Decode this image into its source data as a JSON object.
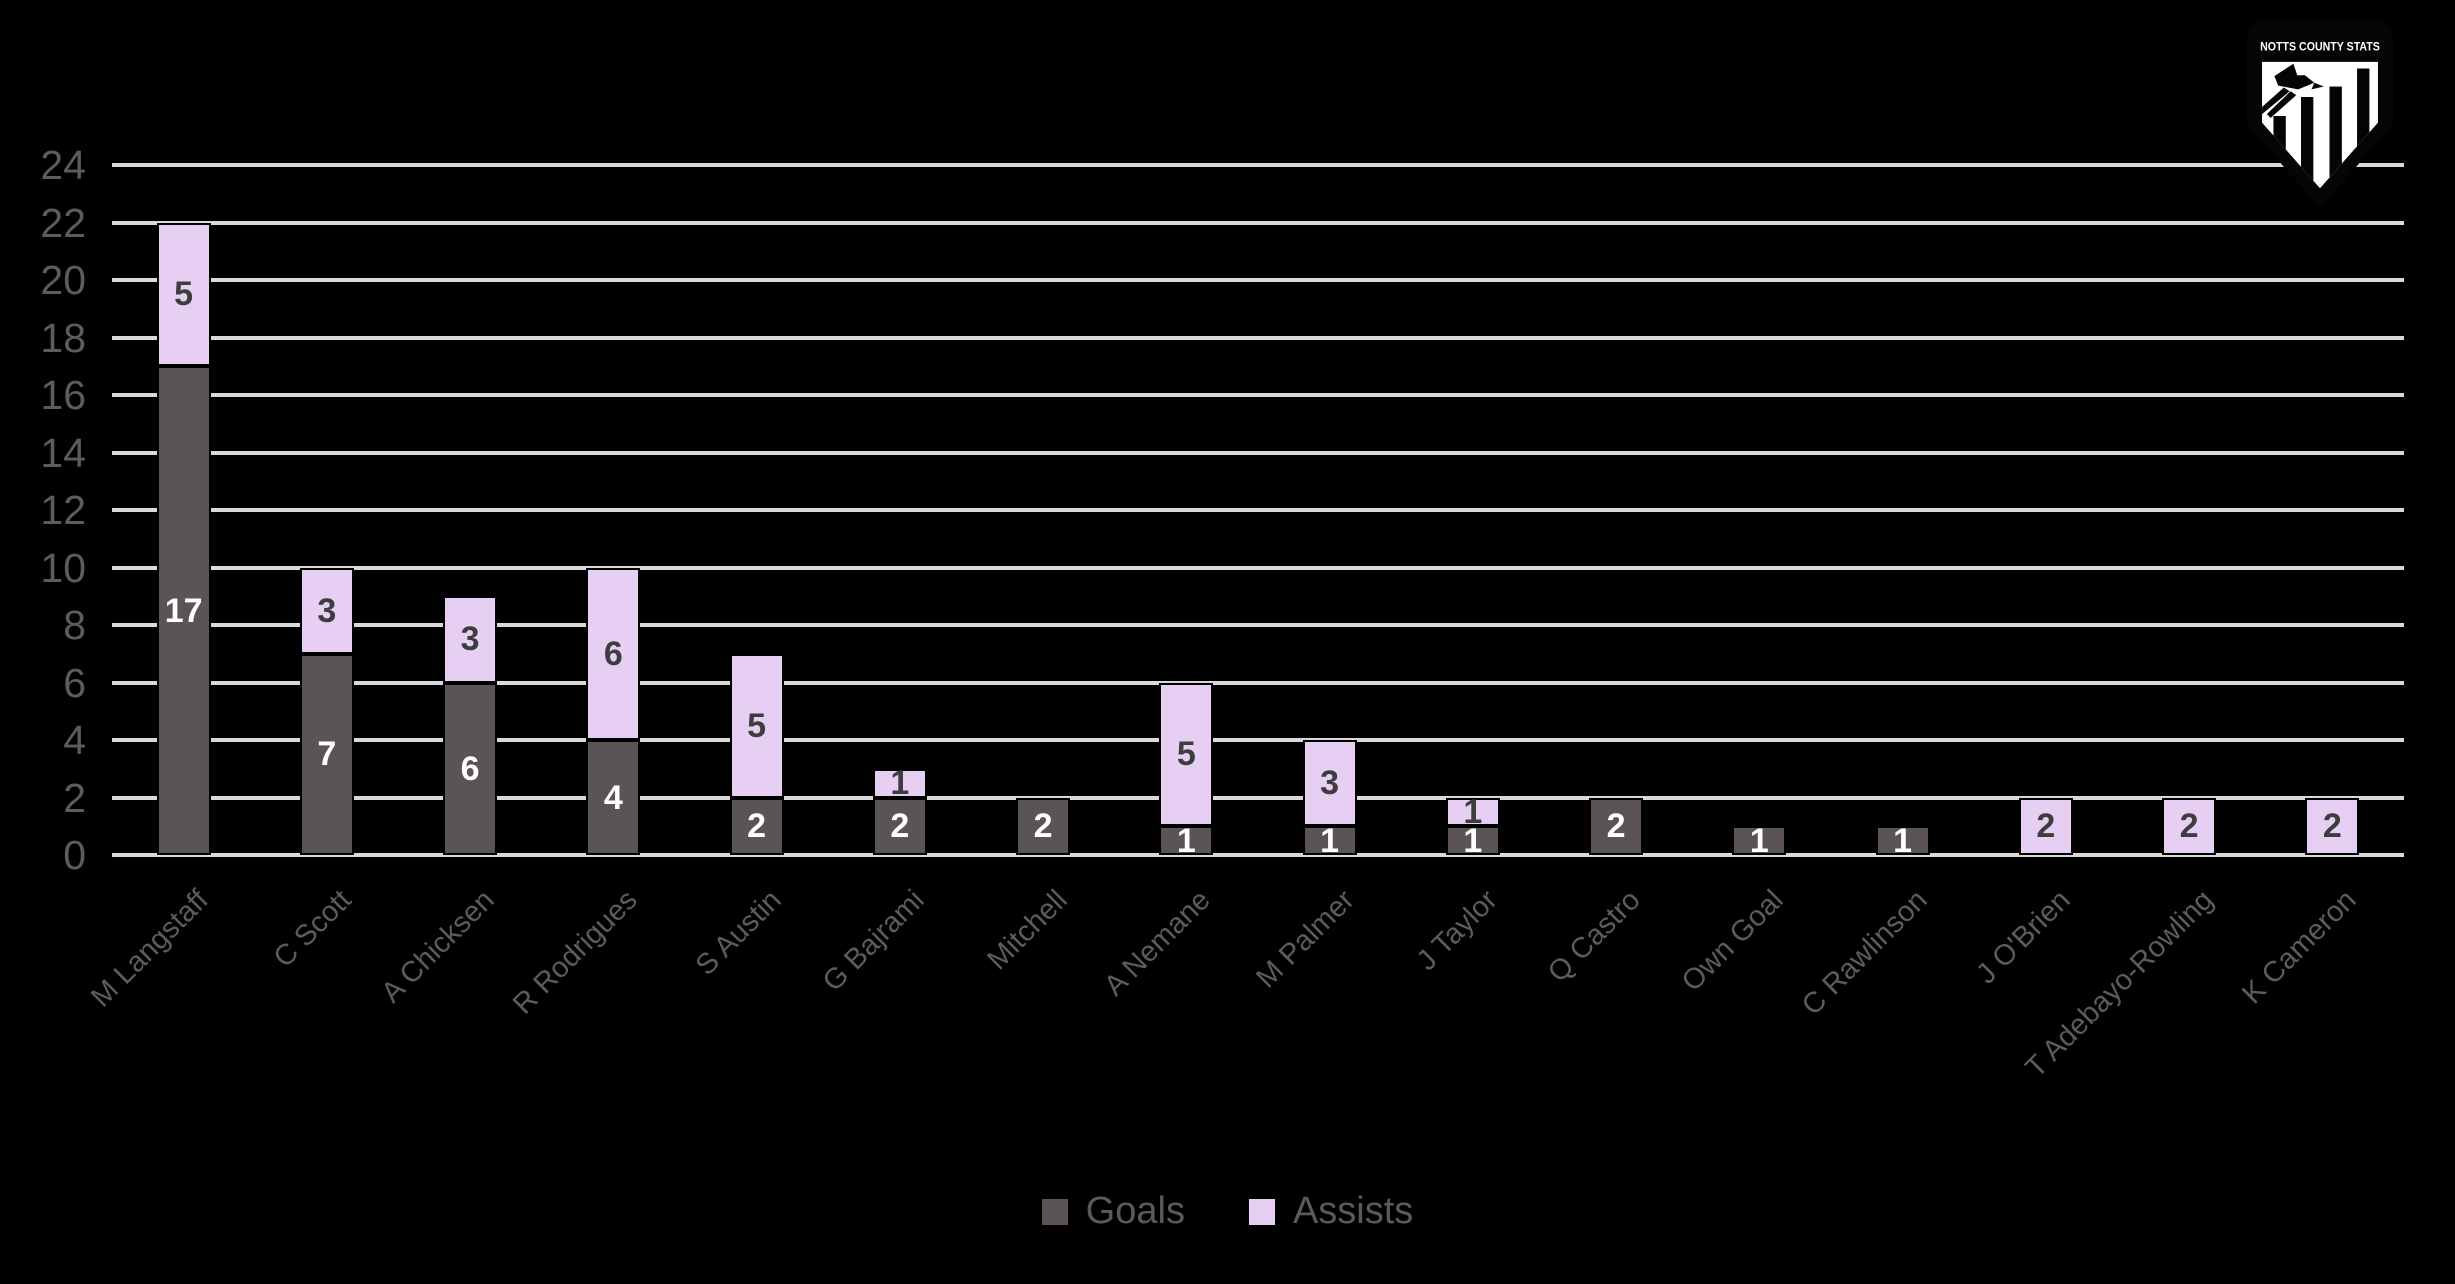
{
  "chart_data": {
    "type": "bar",
    "stacked": true,
    "title": "",
    "categories": [
      "M Langstaff",
      "C Scott",
      "A Chicksen",
      "R Rodrigues",
      "S Austin",
      "G Bajrami",
      "Mitchell",
      "A Nemane",
      "M Palmer",
      "J Taylor",
      "Q Castro",
      "Own Goal",
      "C Rawlinson",
      "J O'Brien",
      "T Adebayo-Rowling",
      "K Cameron"
    ],
    "series": [
      {
        "name": "Goals",
        "color": "#5a5456",
        "label_color": "#ffffff",
        "values": [
          17,
          7,
          6,
          4,
          2,
          2,
          2,
          1,
          1,
          1,
          2,
          1,
          1,
          0,
          0,
          0
        ]
      },
      {
        "name": "Assists",
        "color": "#e6cff2",
        "label_color": "#3d3d3d",
        "values": [
          5,
          3,
          3,
          6,
          5,
          1,
          0,
          5,
          3,
          1,
          0,
          0,
          0,
          2,
          2,
          2
        ]
      }
    ],
    "ylim": [
      0,
      24
    ],
    "yticks": [
      0,
      2,
      4,
      6,
      8,
      10,
      12,
      14,
      16,
      18,
      20,
      22,
      24
    ],
    "grid": "horizontal",
    "legend_position": "bottom"
  },
  "colors": {
    "background": "#000000",
    "gridline": "#d9d9d9",
    "axis_text": "#5c5c5c",
    "legend_text": "#5a5a5a"
  },
  "logo": {
    "text": "NOTTS COUNTY STATS"
  }
}
